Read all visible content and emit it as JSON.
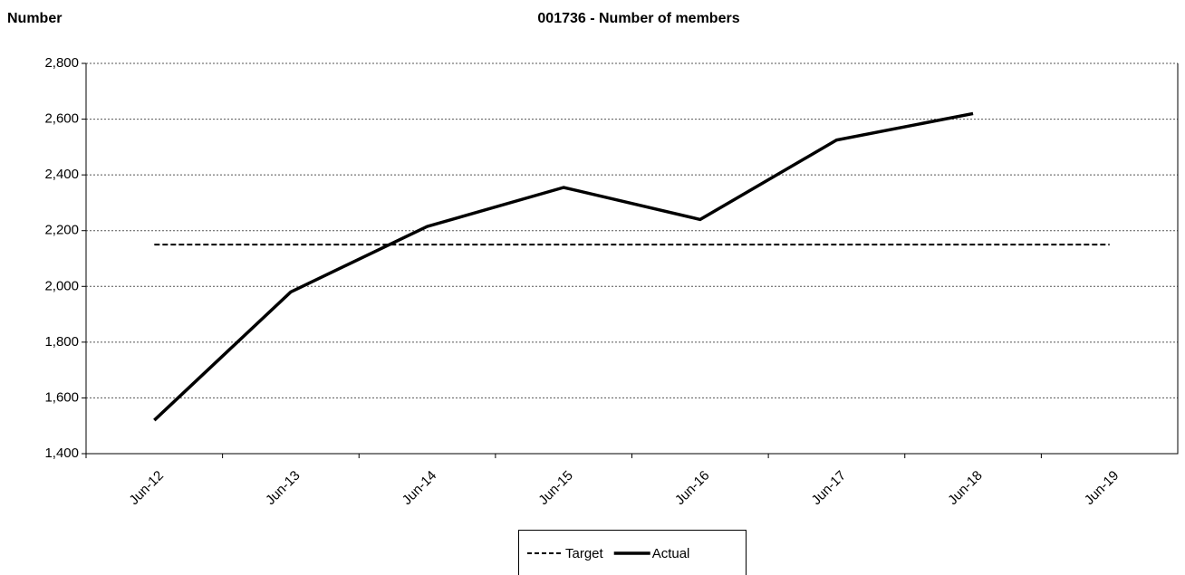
{
  "chart_data": {
    "type": "line",
    "title": "001736 - Number of members",
    "ylabel": "Number",
    "categories": [
      "Jun-12",
      "Jun-13",
      "Jun-14",
      "Jun-15",
      "Jun-16",
      "Jun-17",
      "Jun-18",
      "Jun-19"
    ],
    "series": [
      {
        "name": "Target",
        "color": "#000000",
        "style": "dashed",
        "values": [
          2150,
          2150,
          2150,
          2150,
          2150,
          2150,
          2150,
          2150
        ]
      },
      {
        "name": "Actual",
        "color": "#000000",
        "style": "solid",
        "values": [
          1520,
          1980,
          2215,
          2355,
          2240,
          2525,
          2620,
          null
        ]
      }
    ],
    "ylim": [
      1400,
      2800
    ],
    "yticks": [
      {
        "value": 1400,
        "label": "1,400"
      },
      {
        "value": 1600,
        "label": "1,600"
      },
      {
        "value": 1800,
        "label": "1,800"
      },
      {
        "value": 2000,
        "label": "2,000"
      },
      {
        "value": 2200,
        "label": "2,200"
      },
      {
        "value": 2400,
        "label": "2,400"
      },
      {
        "value": 2600,
        "label": "2,600"
      },
      {
        "value": 2800,
        "label": "2,800"
      }
    ],
    "grid": true,
    "legend": "bottom"
  }
}
